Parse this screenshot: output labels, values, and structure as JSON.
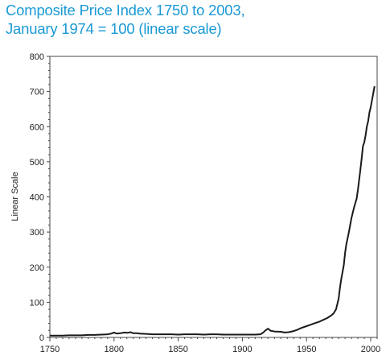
{
  "chart_data": {
    "type": "line",
    "title_line1": "Composite Price Index 1750 to 2003,",
    "title_line2": "January 1974 = 100 (linear scale)",
    "xlabel": "",
    "ylabel": "Linear Scale",
    "xlim": [
      1750,
      2005
    ],
    "ylim": [
      0,
      800
    ],
    "x_ticks": [
      1750,
      1800,
      1850,
      1900,
      1950,
      2000
    ],
    "y_ticks": [
      0,
      100,
      200,
      300,
      400,
      500,
      600,
      700,
      800
    ],
    "grid": false,
    "line_color": "#1a1a1a",
    "title_color": "#1a9ad6",
    "x": [
      1750,
      1755,
      1760,
      1765,
      1770,
      1775,
      1780,
      1785,
      1790,
      1795,
      1798,
      1800,
      1802,
      1805,
      1808,
      1810,
      1813,
      1815,
      1818,
      1820,
      1825,
      1830,
      1835,
      1840,
      1845,
      1850,
      1855,
      1860,
      1865,
      1870,
      1875,
      1880,
      1885,
      1890,
      1895,
      1900,
      1905,
      1910,
      1914,
      1916,
      1918,
      1920,
      1922,
      1925,
      1930,
      1933,
      1936,
      1940,
      1943,
      1946,
      1950,
      1953,
      1956,
      1960,
      1963,
      1966,
      1969,
      1971,
      1973,
      1974,
      1975,
      1976,
      1977,
      1978,
      1979,
      1980,
      1981,
      1983,
      1985,
      1987,
      1989,
      1990,
      1991,
      1992,
      1993,
      1994,
      1995,
      1996,
      1997,
      1998,
      1999,
      2000,
      2001,
      2002,
      2003
    ],
    "values": [
      5,
      5,
      5,
      6,
      6,
      6,
      7,
      7,
      8,
      9,
      11,
      14,
      11,
      12,
      14,
      13,
      15,
      12,
      12,
      11,
      10,
      9,
      9,
      9,
      9,
      8,
      9,
      9,
      9,
      8,
      9,
      9,
      8,
      8,
      8,
      8,
      8,
      8,
      9,
      13,
      20,
      25,
      19,
      17,
      16,
      14,
      15,
      18,
      22,
      27,
      32,
      36,
      40,
      45,
      50,
      55,
      62,
      68,
      80,
      95,
      110,
      140,
      165,
      185,
      205,
      240,
      265,
      300,
      340,
      370,
      395,
      420,
      450,
      480,
      510,
      545,
      555,
      575,
      600,
      615,
      640,
      655,
      675,
      695,
      715
    ]
  }
}
